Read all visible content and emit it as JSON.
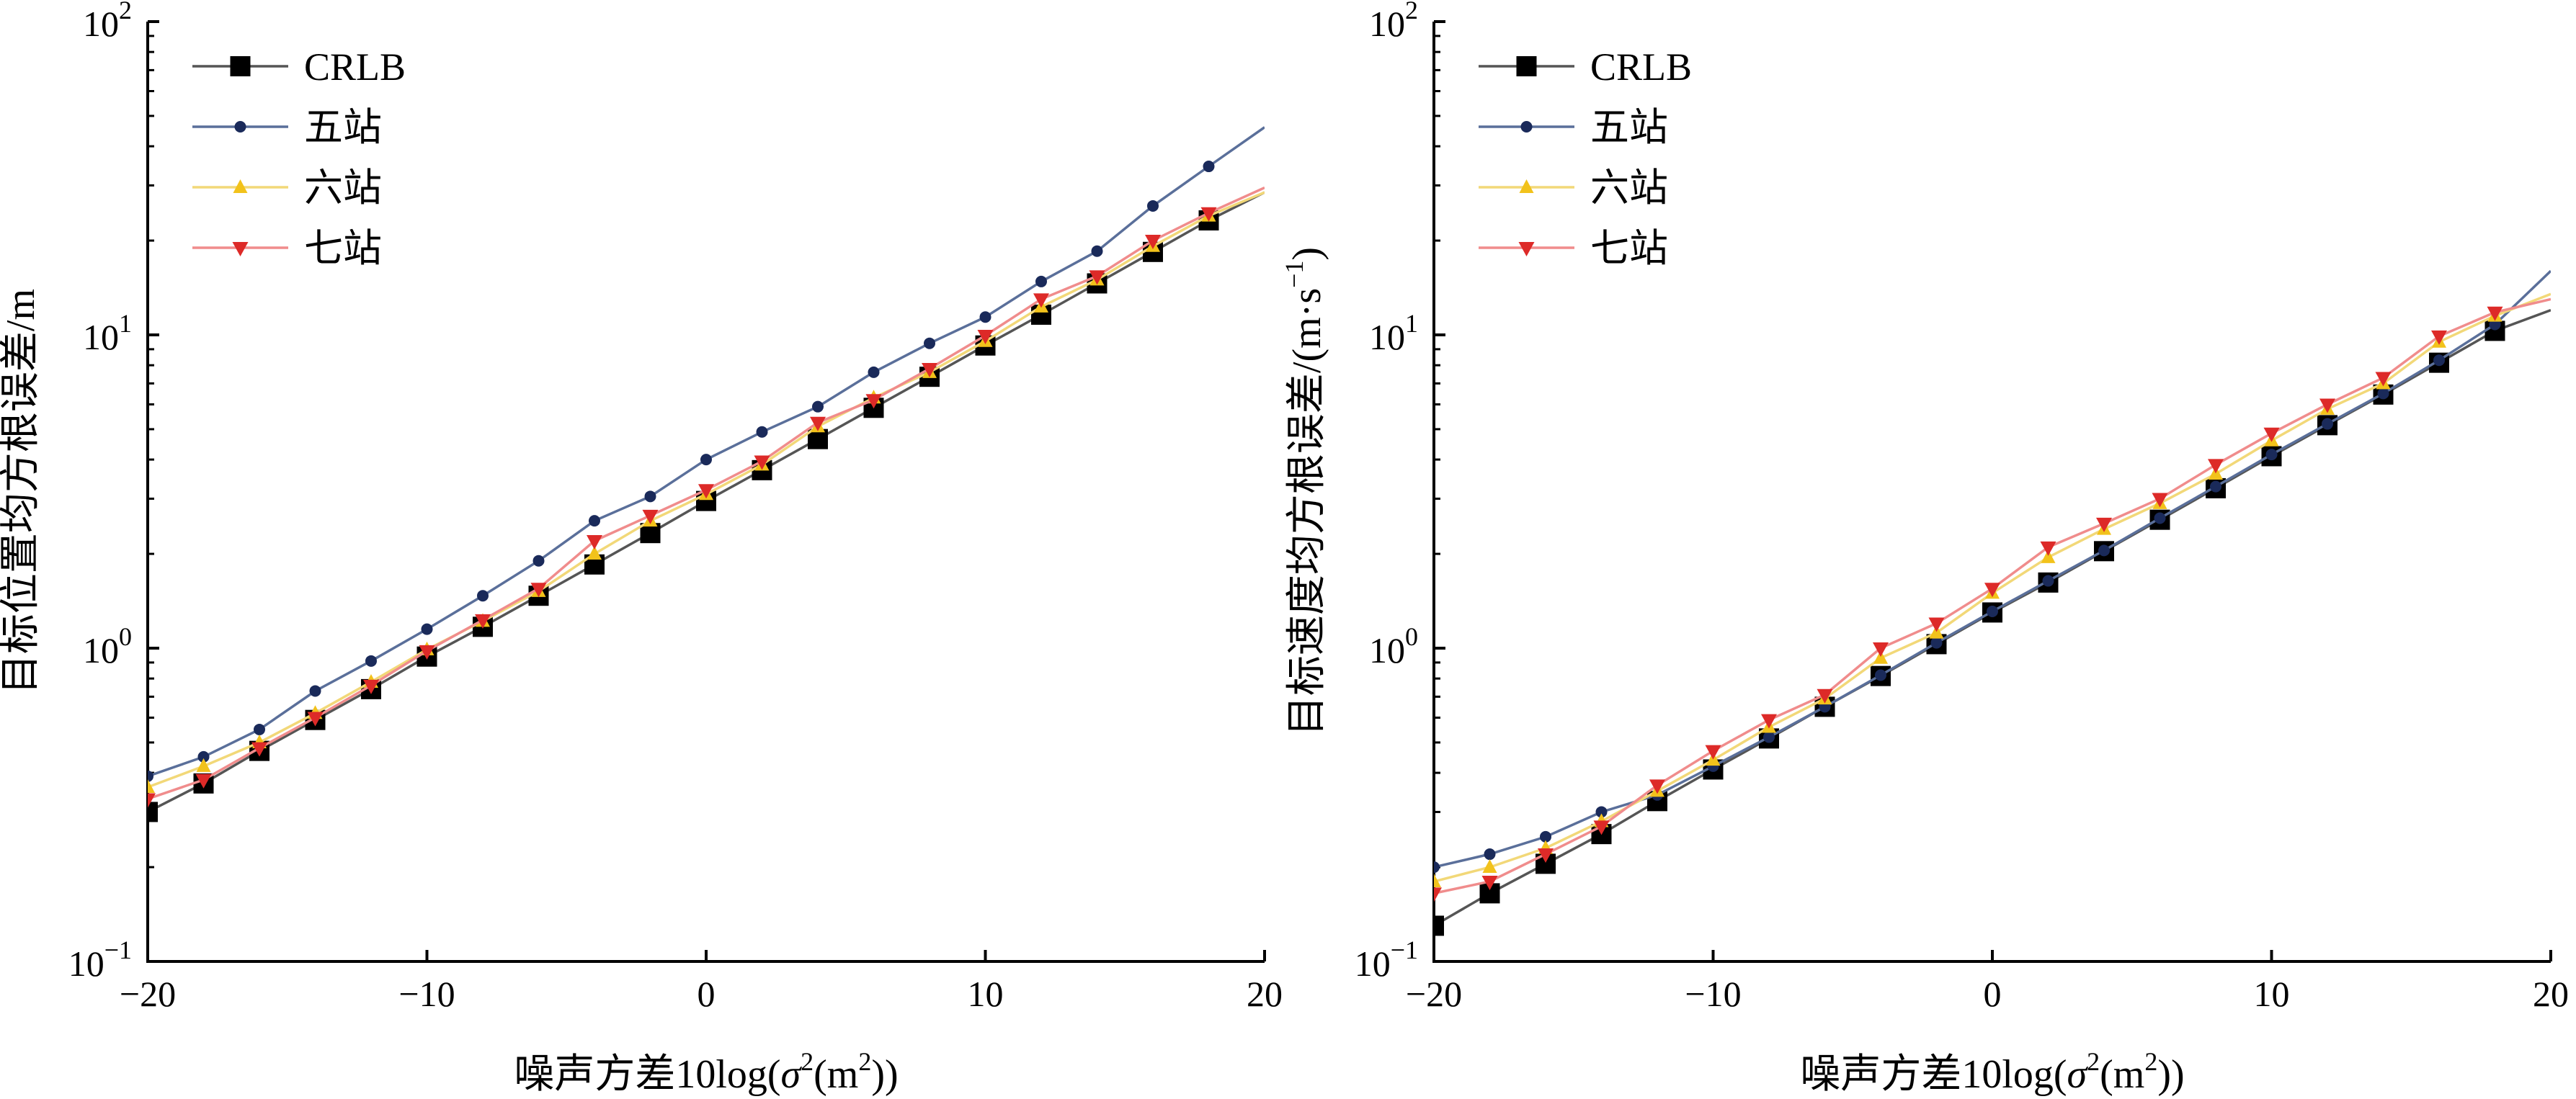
{
  "figure": {
    "panels": [
      {
        "xlabel_prefix": "噪声方差10log(",
        "xlabel_sigma": "σ",
        "xlabel_sup1": "2",
        "xlabel_mid": "(m",
        "xlabel_sup2": "2",
        "xlabel_suffix": "))",
        "ylabel_main": "目标位置均方根误差/m",
        "ylabel_sup": "",
        "ylabel_tail": ""
      },
      {
        "xlabel_prefix": "噪声方差10log(",
        "xlabel_sigma": "σ",
        "xlabel_sup1": "2",
        "xlabel_mid": "(m",
        "xlabel_sup2": "2",
        "xlabel_suffix": "))",
        "ylabel_main": "目标速度均方根误差/(m·s",
        "ylabel_sup": "−1",
        "ylabel_tail": ")"
      }
    ]
  },
  "chart_data": [
    {
      "type": "line",
      "title": "",
      "xlabel": "噪声方差10log(σ²(m²))",
      "ylabel": "目标位置均方根误差/m",
      "xlim": [
        -20,
        20
      ],
      "ylim": [
        0.1,
        100
      ],
      "yscale": "log",
      "grid": false,
      "legend_position": "top-left",
      "x_ticks": [
        -20,
        -10,
        0,
        10,
        20
      ],
      "x_tick_labels": [
        "−20",
        "−10",
        "0",
        "10",
        "20"
      ],
      "y_ticks": [
        0.1,
        1,
        10,
        100
      ],
      "y_tick_labels": [
        {
          "base": "10",
          "exp": "−1"
        },
        {
          "base": "10",
          "exp": "0"
        },
        {
          "base": "10",
          "exp": "1"
        },
        {
          "base": "10",
          "exp": "2"
        }
      ],
      "x": [
        -20,
        -18,
        -16,
        -14,
        -12,
        -10,
        -8,
        -6,
        -4,
        -2,
        0,
        2,
        4,
        6,
        8,
        10,
        12,
        14,
        16,
        18,
        20
      ],
      "series": [
        {
          "name": "CRLB",
          "color": "#000000",
          "line_color": "#555555",
          "marker": "square",
          "values": [
            0.3,
            0.37,
            0.47,
            0.59,
            0.74,
            0.94,
            1.17,
            1.47,
            1.85,
            2.33,
            2.95,
            3.7,
            4.65,
            5.85,
            7.35,
            9.25,
            11.6,
            14.6,
            18.4,
            23.2,
            28.5
          ]
        },
        {
          "name": "五站",
          "color": "#1a2a5a",
          "line_color": "#5a6f9a",
          "marker": "circle",
          "values": [
            0.39,
            0.45,
            0.55,
            0.73,
            0.91,
            1.15,
            1.47,
            1.9,
            2.55,
            3.05,
            4.0,
            4.9,
            5.9,
            7.6,
            9.4,
            11.4,
            14.8,
            18.5,
            25.8,
            34.5,
            46.0
          ]
        },
        {
          "name": "六站",
          "color": "#f2c21b",
          "line_color": "#f2d878",
          "marker": "triangle-up",
          "values": [
            0.36,
            0.42,
            0.5,
            0.62,
            0.78,
            0.99,
            1.22,
            1.52,
            2.0,
            2.55,
            3.1,
            3.85,
            5.1,
            6.3,
            7.6,
            9.55,
            12.3,
            15.0,
            19.2,
            24.0,
            28.5
          ]
        },
        {
          "name": "七站",
          "color": "#dd2a28",
          "line_color": "#f08c8c",
          "marker": "triangle-down",
          "values": [
            0.33,
            0.38,
            0.48,
            0.6,
            0.76,
            0.98,
            1.23,
            1.55,
            2.2,
            2.65,
            3.2,
            3.95,
            5.25,
            6.2,
            7.8,
            9.95,
            13.0,
            15.4,
            20.0,
            24.5,
            29.5
          ]
        }
      ]
    },
    {
      "type": "line",
      "title": "",
      "xlabel": "噪声方差10log(σ²(m²))",
      "ylabel": "目标速度均方根误差/(m·s⁻¹)",
      "xlim": [
        -20,
        20
      ],
      "ylim": [
        0.1,
        100
      ],
      "yscale": "log",
      "grid": false,
      "legend_position": "top-left",
      "x_ticks": [
        -20,
        -10,
        0,
        10,
        20
      ],
      "x_tick_labels": [
        "−20",
        "−10",
        "0",
        "10",
        "20"
      ],
      "y_ticks": [
        0.1,
        1,
        10,
        100
      ],
      "y_tick_labels": [
        {
          "base": "10",
          "exp": "−1"
        },
        {
          "base": "10",
          "exp": "0"
        },
        {
          "base": "10",
          "exp": "1"
        },
        {
          "base": "10",
          "exp": "2"
        }
      ],
      "x": [
        -20,
        -18,
        -16,
        -14,
        -12,
        -10,
        -8,
        -6,
        -4,
        -2,
        0,
        2,
        4,
        6,
        8,
        10,
        12,
        14,
        16,
        18,
        20
      ],
      "series": [
        {
          "name": "CRLB",
          "color": "#000000",
          "line_color": "#555555",
          "marker": "square",
          "values": [
            0.13,
            0.165,
            0.205,
            0.255,
            0.325,
            0.41,
            0.515,
            0.65,
            0.815,
            1.03,
            1.3,
            1.62,
            2.04,
            2.57,
            3.24,
            4.1,
            5.15,
            6.45,
            8.15,
            10.3,
            12.0
          ]
        },
        {
          "name": "五站",
          "color": "#1a2a5a",
          "line_color": "#5a6f9a",
          "marker": "circle",
          "values": [
            0.2,
            0.22,
            0.25,
            0.3,
            0.34,
            0.42,
            0.52,
            0.65,
            0.82,
            1.04,
            1.31,
            1.64,
            2.05,
            2.6,
            3.28,
            4.15,
            5.2,
            6.5,
            8.3,
            10.8,
            16.0
          ]
        },
        {
          "name": "六站",
          "color": "#f2c21b",
          "line_color": "#f2d878",
          "marker": "triangle-up",
          "values": [
            0.18,
            0.2,
            0.23,
            0.28,
            0.35,
            0.44,
            0.56,
            0.69,
            0.93,
            1.12,
            1.5,
            1.95,
            2.4,
            2.9,
            3.6,
            4.6,
            5.8,
            7.0,
            9.5,
            11.5,
            13.5
          ]
        },
        {
          "name": "七站",
          "color": "#dd2a28",
          "line_color": "#f08c8c",
          "marker": "triangle-down",
          "values": [
            0.165,
            0.18,
            0.22,
            0.27,
            0.365,
            0.47,
            0.59,
            0.71,
            1.0,
            1.2,
            1.55,
            2.1,
            2.5,
            3.0,
            3.85,
            4.85,
            6.0,
            7.3,
            9.9,
            11.8,
            13.0
          ]
        }
      ]
    }
  ]
}
